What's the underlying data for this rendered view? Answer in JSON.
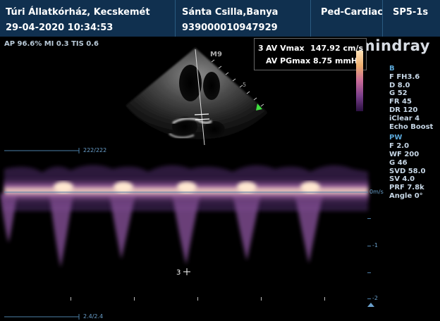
{
  "header": {
    "clinic": "Túri Állatkórház, Kecskemét",
    "datetime": "29-04-2020 10:34:53",
    "patient": "Sánta Csilla,Banya",
    "patient_id": "939000010947929",
    "exam": "Ped-Cardiac",
    "probe": "SP5-1s"
  },
  "status_line": "AP 96.6%  MI 0.3  TIS 0.6",
  "brand": "mindray",
  "measurement": {
    "index": "3",
    "rows": [
      {
        "label": "AV Vmax",
        "value": "147.92 cm/s"
      },
      {
        "label": "AV PGmax",
        "value": "8.75 mmHg"
      }
    ]
  },
  "image_label": "M9",
  "depth_mark": "5",
  "cursor_label": "3",
  "b_mode": {
    "title": "B",
    "items": [
      "F FH3.6",
      "D 8.0",
      "G 52",
      "FR 45",
      "DR 120",
      "iClear 4",
      "Echo Boost"
    ]
  },
  "pw_mode": {
    "title": "PW",
    "items": [
      "F 2.0",
      "WF 200",
      "G 46",
      "SVD 58.0",
      "SV 4.0",
      "PRF 7.8k",
      "Angle 0°"
    ]
  },
  "doppler_scale": {
    "zero_label": "0m/s",
    "neg1": "-1",
    "neg2": "-2",
    "top_counter": "222/222",
    "bottom_counter": "2.4/2.4"
  },
  "colors": {
    "header_bg": "#10304f",
    "accent": "#5aa7d8",
    "spectrum": "#f3c9a8"
  }
}
